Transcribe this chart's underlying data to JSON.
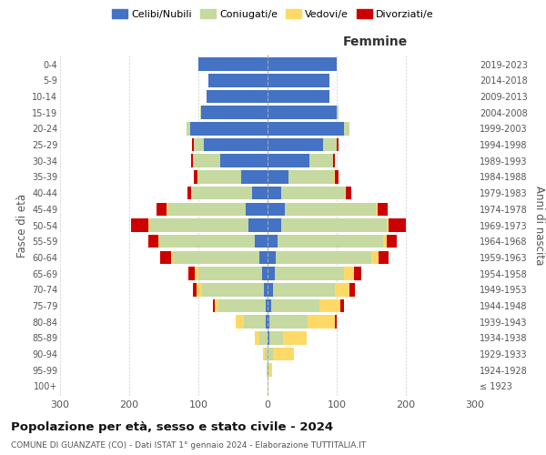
{
  "age_groups": [
    "100+",
    "95-99",
    "90-94",
    "85-89",
    "80-84",
    "75-79",
    "70-74",
    "65-69",
    "60-64",
    "55-59",
    "50-54",
    "45-49",
    "40-44",
    "35-39",
    "30-34",
    "25-29",
    "20-24",
    "15-19",
    "10-14",
    "5-9",
    "0-4"
  ],
  "birth_years": [
    "≤ 1923",
    "1924-1928",
    "1929-1933",
    "1934-1938",
    "1939-1943",
    "1944-1948",
    "1949-1953",
    "1954-1958",
    "1959-1963",
    "1964-1968",
    "1969-1973",
    "1974-1978",
    "1979-1983",
    "1984-1988",
    "1989-1993",
    "1994-1998",
    "1999-2003",
    "2004-2008",
    "2009-2013",
    "2014-2018",
    "2019-2023"
  ],
  "male_celibe": [
    0,
    0,
    0,
    0,
    2,
    3,
    5,
    8,
    12,
    18,
    28,
    32,
    22,
    38,
    68,
    92,
    112,
    96,
    88,
    86,
    100
  ],
  "male_coniugato": [
    0,
    1,
    4,
    12,
    32,
    68,
    90,
    92,
    125,
    138,
    142,
    112,
    88,
    62,
    40,
    15,
    5,
    2,
    0,
    0,
    0
  ],
  "male_vedovo": [
    0,
    0,
    2,
    6,
    12,
    5,
    8,
    5,
    3,
    2,
    2,
    2,
    1,
    1,
    0,
    0,
    0,
    0,
    0,
    0,
    0
  ],
  "male_divorziato": [
    0,
    0,
    0,
    0,
    0,
    3,
    5,
    10,
    15,
    15,
    25,
    15,
    5,
    5,
    3,
    2,
    0,
    0,
    0,
    0,
    0
  ],
  "female_nubile": [
    0,
    0,
    0,
    2,
    3,
    5,
    8,
    10,
    12,
    15,
    20,
    25,
    20,
    30,
    60,
    80,
    110,
    100,
    90,
    90,
    100
  ],
  "female_coniugata": [
    0,
    2,
    8,
    20,
    55,
    70,
    90,
    100,
    138,
    152,
    152,
    132,
    92,
    66,
    35,
    20,
    8,
    3,
    0,
    0,
    0
  ],
  "female_vedova": [
    1,
    5,
    30,
    35,
    40,
    30,
    20,
    15,
    10,
    5,
    3,
    2,
    1,
    1,
    0,
    0,
    0,
    0,
    0,
    0,
    0
  ],
  "female_divorziata": [
    0,
    0,
    0,
    0,
    2,
    5,
    8,
    10,
    15,
    15,
    25,
    15,
    8,
    5,
    3,
    2,
    0,
    0,
    0,
    0,
    0
  ],
  "colors": {
    "celibe": "#4472C4",
    "coniugato": "#c5d9a0",
    "vedovo": "#FFD966",
    "divorziato": "#CC0000"
  },
  "title": "Popolazione per età, sesso e stato civile - 2024",
  "subtitle": "COMUNE DI GUANZATE (CO) - Dati ISTAT 1° gennaio 2024 - Elaborazione TUTTITALIA.IT",
  "xlabel_right": "Femmine",
  "ylabel_left": "Fasce di età",
  "ylabel_right": "Anni di nascita",
  "xlim": 300,
  "legend_labels": [
    "Celibi/Nubili",
    "Coniugati/e",
    "Vedovi/e",
    "Divorziati/e"
  ],
  "background_color": "#ffffff",
  "grid_color": "#cccccc"
}
